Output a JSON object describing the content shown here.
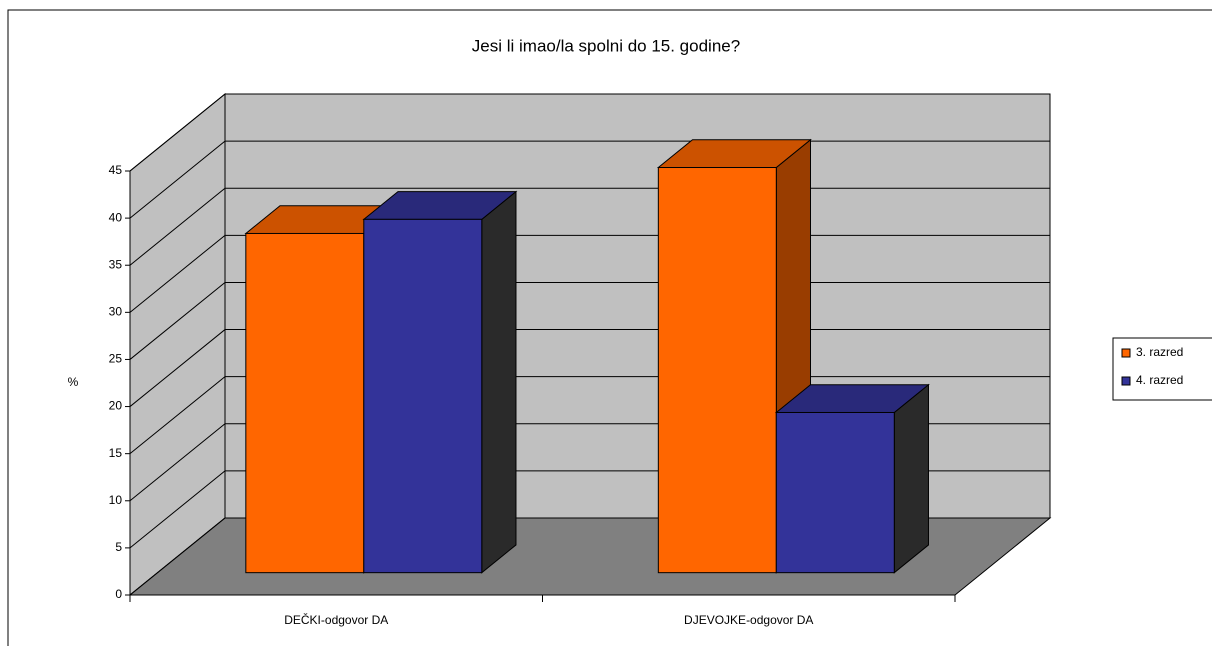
{
  "chart_data": {
    "type": "bar3d",
    "title": "Jesi li imao/la spolni do 15. godine?",
    "y_label": "%",
    "categories": [
      "DEČKI-odgovor DA",
      "DJEVOJKE-odgovor DA"
    ],
    "series": [
      {
        "name": "3. razred",
        "color": "#ff6600",
        "values": [
          36,
          43
        ]
      },
      {
        "name": "4. razred",
        "color": "#333399",
        "values": [
          37.5,
          17
        ]
      }
    ],
    "ylim": [
      0,
      45
    ],
    "yticks": [
      0,
      5,
      10,
      15,
      20,
      25,
      30,
      35,
      40,
      45
    ],
    "grid": true,
    "legend": "right"
  }
}
